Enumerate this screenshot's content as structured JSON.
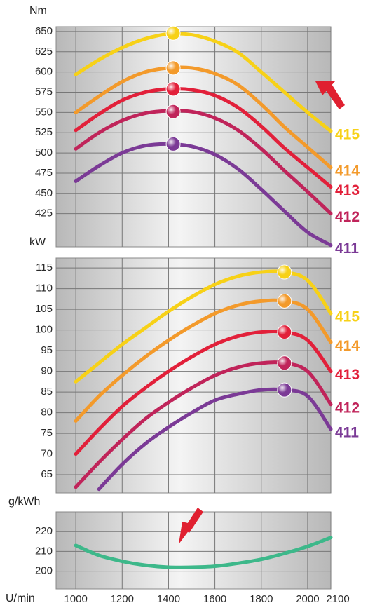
{
  "chart_data": [
    {
      "type": "line",
      "y_label": "Nm",
      "xlim": [
        915,
        2100
      ],
      "ylim": [
        384,
        656
      ],
      "yticks": [
        425,
        450,
        475,
        500,
        525,
        550,
        575,
        600,
        625,
        650
      ],
      "x": [
        1000,
        1100,
        1200,
        1300,
        1400,
        1500,
        1600,
        1700,
        1800,
        1900,
        2000,
        2100
      ],
      "series": [
        {
          "name": "415",
          "color": "#f7d117",
          "values": [
            597,
            615,
            630,
            641,
            647,
            646,
            638,
            624,
            600,
            575,
            550,
            527
          ],
          "peak": [
            1420,
            648
          ]
        },
        {
          "name": "414",
          "color": "#f39a2b",
          "values": [
            550,
            570,
            588,
            600,
            605,
            605,
            598,
            584,
            560,
            532,
            507,
            482
          ],
          "peak": [
            1420,
            605
          ]
        },
        {
          "name": "413",
          "color": "#e2203a",
          "values": [
            528,
            548,
            565,
            575,
            579,
            578,
            571,
            556,
            533,
            506,
            482,
            458
          ],
          "peak": [
            1420,
            579
          ]
        },
        {
          "name": "412",
          "color": "#c0245a",
          "values": [
            505,
            525,
            540,
            549,
            552,
            551,
            543,
            528,
            505,
            478,
            452,
            425
          ],
          "peak": [
            1420,
            551
          ]
        },
        {
          "name": "411",
          "color": "#7b3a96",
          "values": [
            465,
            484,
            500,
            509,
            511,
            508,
            498,
            480,
            455,
            428,
            402,
            386
          ],
          "peak": [
            1420,
            511
          ]
        }
      ]
    },
    {
      "type": "line",
      "y_label": "kW",
      "xlim": [
        915,
        2100
      ],
      "ylim": [
        60.6,
        117.4
      ],
      "yticks": [
        65,
        70,
        75,
        80,
        85,
        90,
        95,
        100,
        105,
        110,
        115
      ],
      "x": [
        1000,
        1100,
        1200,
        1300,
        1400,
        1500,
        1600,
        1700,
        1800,
        1900,
        2000,
        2100
      ],
      "series": [
        {
          "name": "415",
          "color": "#f7d117",
          "values": [
            87.5,
            92,
            96.5,
            100.5,
            104.5,
            108,
            111,
            113,
            114,
            114,
            112,
            104
          ],
          "peak": [
            1900,
            114
          ]
        },
        {
          "name": "414",
          "color": "#f39a2b",
          "values": [
            78,
            84,
            89,
            93.5,
            97.5,
            101,
            104,
            106,
            107,
            107,
            105,
            97
          ],
          "peak": [
            1900,
            107
          ]
        },
        {
          "name": "413",
          "color": "#e2203a",
          "values": [
            70,
            76,
            81.5,
            86,
            90,
            93.5,
            96.5,
            98.5,
            99.5,
            99.5,
            97.5,
            90
          ],
          "peak": [
            1900,
            99.5
          ]
        },
        {
          "name": "412",
          "color": "#c0245a",
          "values": [
            62,
            68,
            73.5,
            78.5,
            82.5,
            86,
            89,
            91,
            92,
            92,
            90,
            82
          ],
          "peak": [
            1900,
            92
          ]
        },
        {
          "name": "411",
          "color": "#7b3a96",
          "values": [
            null,
            61.5,
            67.5,
            72.5,
            76.5,
            80,
            83,
            84.5,
            85.5,
            85.5,
            84,
            76
          ],
          "peak": [
            1900,
            85.5
          ]
        }
      ]
    },
    {
      "type": "line",
      "y_label": "g/kWh",
      "x_label": "U/min",
      "xlim": [
        915,
        2100
      ],
      "ylim": [
        191,
        230
      ],
      "yticks": [
        200,
        210,
        220
      ],
      "xticks": [
        1000,
        1200,
        1400,
        1600,
        1800,
        2000,
        2100
      ],
      "x": [
        1000,
        1100,
        1200,
        1300,
        1400,
        1500,
        1600,
        1700,
        1800,
        1900,
        2000,
        2100
      ],
      "series": [
        {
          "color": "#3db88a",
          "values": [
            213,
            208,
            205,
            203,
            202,
            202,
            202.5,
            204,
            206,
            209,
            212.5,
            217
          ]
        }
      ]
    }
  ]
}
